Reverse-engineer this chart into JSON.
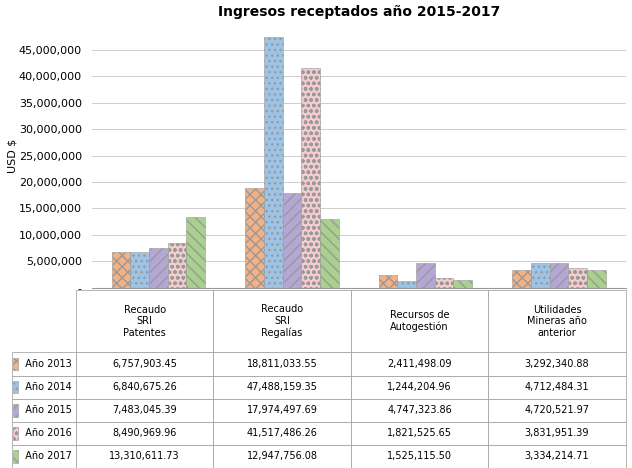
{
  "title": "Ingresos receptados año 2015-2017",
  "ylabel": "USD $",
  "categories": [
    "Recaudo\nSRI\nPatentes",
    "Recaudo\nSRI\nRegalías",
    "Recursos de\nAutogestión",
    "Utilidades\nMineras año\nanterior"
  ],
  "years": [
    "Año 2013",
    "Año 2014",
    "Año 2015",
    "Año 2016",
    "Año 2017"
  ],
  "data": [
    [
      6757903.45,
      18811033.55,
      2411498.09,
      3292340.88
    ],
    [
      6840675.26,
      47488159.35,
      1244204.96,
      4712484.31
    ],
    [
      7483045.39,
      17974497.69,
      4747323.86,
      4720521.97
    ],
    [
      8490969.96,
      41517486.26,
      1821525.65,
      3831951.39
    ],
    [
      13310611.73,
      12947756.08,
      1525115.5,
      3334214.71
    ]
  ],
  "colors": [
    "#F4B183",
    "#9DC3E6",
    "#B4A7D6",
    "#F4CCCC",
    "#A9D18E"
  ],
  "hatch_patterns": [
    "xxx",
    "...",
    "///",
    "ooo",
    "\\\\\\"
  ],
  "table_values": [
    [
      "6,757,903.45",
      "18,811,033.55",
      "2,411,498.09",
      "3,292,340.88"
    ],
    [
      "6,840,675.26",
      "47,488,159.35",
      "1,244,204.96",
      "4,712,484.31"
    ],
    [
      "7,483,045.39",
      "17,974,497.69",
      "4,747,323.86",
      "4,720,521.97"
    ],
    [
      "8,490,969.96",
      "41,517,486.26",
      "1,821,525.65",
      "3,831,951.39"
    ],
    [
      "13,310,611.73",
      "12,947,756.08",
      "1,525,115.50",
      "3,334,214.71"
    ]
  ],
  "ylim": [
    0,
    50000000
  ],
  "yticks": [
    0,
    5000000,
    10000000,
    15000000,
    20000000,
    25000000,
    30000000,
    35000000,
    40000000,
    45000000
  ],
  "ytick_labels": [
    "-",
    "5,000,000",
    "10,000,000",
    "15,000,000",
    "20,000,000",
    "25,000,000",
    "30,000,000",
    "35,000,000",
    "40,000,000",
    "45,000,000"
  ],
  "background_color": "#FFFFFF",
  "grid_color": "#BBBBBB",
  "title_fontsize": 10,
  "axis_fontsize": 8,
  "table_fontsize": 7,
  "bar_width": 0.14,
  "bar_edgecolor": "#999999"
}
